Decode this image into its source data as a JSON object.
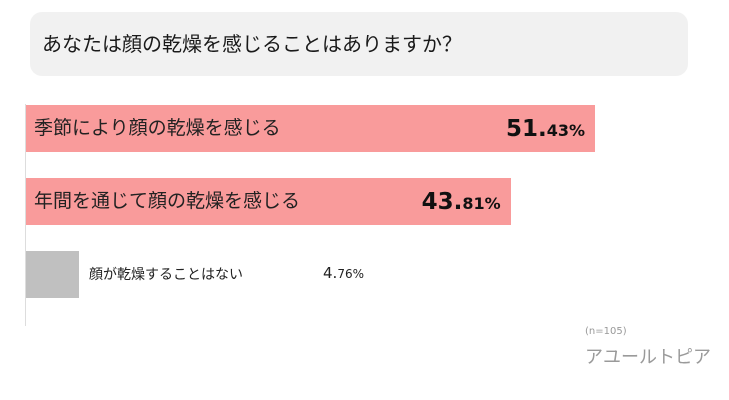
{
  "chart_data": {
    "type": "bar",
    "orientation": "horizontal",
    "title": "あなたは顔の乾燥を感じることはありますか？",
    "categories": [
      "季節により顔の乾燥を感じる",
      "年間を通じて顔の乾燥を感じる",
      "顔が乾燥することはない"
    ],
    "values": [
      51.43,
      43.81,
      4.76
    ],
    "value_labels": [
      {
        "int": "51.",
        "dec": "43%"
      },
      {
        "int": "43.",
        "dec": "81%"
      },
      {
        "int": "4.",
        "dec": "76%"
      }
    ],
    "colors": [
      "#f99b9b",
      "#f99b9b",
      "#c0c0c0"
    ],
    "xlabel": "",
    "ylabel": "",
    "grid": false,
    "note": "(n=105)",
    "source": "アユールトピア"
  }
}
